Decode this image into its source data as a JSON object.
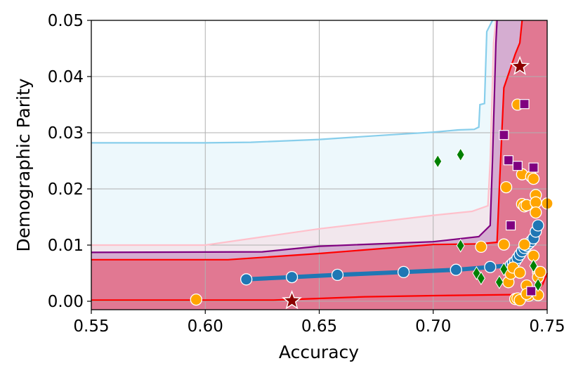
{
  "chart_data": {
    "type": "scatter",
    "xlabel": "Accuracy",
    "ylabel": "Demographic Parity",
    "xlim": [
      0.55,
      0.75
    ],
    "ylim": [
      -0.0015,
      0.05
    ],
    "xticks": [
      "0.55",
      "0.60",
      "0.65",
      "0.70",
      "0.75"
    ],
    "yticks": [
      "0.00",
      "0.01",
      "0.02",
      "0.03",
      "0.04",
      "0.05"
    ],
    "grid": true,
    "colors": {
      "skyblue": "#87ceeb",
      "pink": "#ffc0cb",
      "purple": "#800080",
      "red": "#ff0000",
      "steelblue": "#1f77b4",
      "orange": "#ffa500",
      "green": "#008000",
      "darkred": "#8b0000"
    },
    "regions": [
      {
        "color": "#87ceeb",
        "fill_opacity": 0.15,
        "boundary": [
          [
            0.55,
            0.0282
          ],
          [
            0.6,
            0.0282
          ],
          [
            0.62,
            0.0283
          ],
          [
            0.65,
            0.0288
          ],
          [
            0.68,
            0.0296
          ],
          [
            0.7,
            0.0301
          ],
          [
            0.711,
            0.0305
          ],
          [
            0.718,
            0.0306
          ],
          [
            0.72,
            0.031
          ],
          [
            0.7205,
            0.035
          ],
          [
            0.7225,
            0.0352
          ],
          [
            0.7235,
            0.048
          ],
          [
            0.726,
            0.05
          ]
        ]
      },
      {
        "color": "#ffc0cb",
        "fill_opacity": 0.3,
        "boundary": [
          [
            0.55,
            0.01
          ],
          [
            0.6,
            0.01
          ],
          [
            0.65,
            0.0129
          ],
          [
            0.7,
            0.0153
          ],
          [
            0.717,
            0.016
          ],
          [
            0.724,
            0.017
          ],
          [
            0.725,
            0.025
          ],
          [
            0.7265,
            0.046
          ],
          [
            0.7275,
            0.05
          ]
        ]
      },
      {
        "color": "#800080",
        "fill_opacity": 0.25,
        "boundary": [
          [
            0.55,
            0.0087
          ],
          [
            0.625,
            0.0088
          ],
          [
            0.65,
            0.0098
          ],
          [
            0.7,
            0.0106
          ],
          [
            0.72,
            0.0115
          ],
          [
            0.725,
            0.0135
          ],
          [
            0.726,
            0.025
          ],
          [
            0.7275,
            0.046
          ],
          [
            0.728,
            0.05
          ]
        ]
      },
      {
        "color": "#ff0000",
        "fill_opacity": 0.3,
        "boundary": [
          [
            0.55,
            0.0074
          ],
          [
            0.61,
            0.0074
          ],
          [
            0.65,
            0.0085
          ],
          [
            0.7,
            0.0101
          ],
          [
            0.72,
            0.0102
          ],
          [
            0.728,
            0.0105
          ],
          [
            0.729,
            0.02
          ],
          [
            0.731,
            0.038
          ],
          [
            0.736,
            0.044
          ],
          [
            0.738,
            0.046
          ],
          [
            0.739,
            0.05
          ]
        ]
      }
    ],
    "lower_line": {
      "color": "#ff0000",
      "points": [
        [
          0.55,
          0.0002
        ],
        [
          0.63,
          0.0002
        ],
        [
          0.67,
          0.0008
        ],
        [
          0.7,
          0.001
        ],
        [
          0.74,
          0.0012
        ],
        [
          0.745,
          0.0015
        ],
        [
          0.748,
          0.003
        ],
        [
          0.75,
          0.005
        ]
      ]
    },
    "series": [
      {
        "marker": "circle",
        "color": "#1f77b4",
        "line": true,
        "points": [
          [
            0.618,
            0.0039
          ],
          [
            0.638,
            0.0043
          ],
          [
            0.658,
            0.0047
          ],
          [
            0.687,
            0.0052
          ],
          [
            0.71,
            0.0056
          ],
          [
            0.725,
            0.0061
          ],
          [
            0.734,
            0.0064
          ],
          [
            0.735,
            0.0068
          ],
          [
            0.736,
            0.0071
          ],
          [
            0.737,
            0.0077
          ],
          [
            0.738,
            0.0083
          ],
          [
            0.739,
            0.0089
          ],
          [
            0.74,
            0.0095
          ],
          [
            0.741,
            0.0099
          ],
          [
            0.742,
            0.0103
          ],
          [
            0.743,
            0.0107
          ],
          [
            0.744,
            0.0112
          ],
          [
            0.745,
            0.0124
          ],
          [
            0.746,
            0.0135
          ]
        ]
      },
      {
        "marker": "circle",
        "color": "#ffa500",
        "points": [
          [
            0.596,
            0.0003
          ],
          [
            0.721,
            0.0097
          ],
          [
            0.731,
            0.0101
          ],
          [
            0.732,
            0.0203
          ],
          [
            0.733,
            0.0034
          ],
          [
            0.734,
            0.0049
          ],
          [
            0.735,
            0.006
          ],
          [
            0.736,
            0.0004
          ],
          [
            0.737,
            0.035
          ],
          [
            0.737,
            0.0005
          ],
          [
            0.738,
            0.0051
          ],
          [
            0.739,
            0.0226
          ],
          [
            0.739,
            0.0173
          ],
          [
            0.74,
            0.0169
          ],
          [
            0.741,
            0.0171
          ],
          [
            0.74,
            0.0101
          ],
          [
            0.741,
            0.0028
          ],
          [
            0.742,
            0.001
          ],
          [
            0.743,
            0.0222
          ],
          [
            0.744,
            0.0218
          ],
          [
            0.744,
            0.0081
          ],
          [
            0.745,
            0.0189
          ],
          [
            0.745,
            0.0176
          ],
          [
            0.745,
            0.0158
          ],
          [
            0.746,
            0.0011
          ],
          [
            0.746,
            0.0052
          ],
          [
            0.746,
            0.0043
          ],
          [
            0.747,
            0.0052
          ],
          [
            0.75,
            0.0174
          ],
          [
            0.738,
            0.0002
          ],
          [
            0.741,
            0.0013
          ]
        ]
      },
      {
        "marker": "square",
        "color": "#800080",
        "points": [
          [
            0.731,
            0.0296
          ],
          [
            0.733,
            0.0251
          ],
          [
            0.734,
            0.0135
          ],
          [
            0.737,
            0.0241
          ],
          [
            0.74,
            0.0351
          ],
          [
            0.744,
            0.0238
          ],
          [
            0.743,
            0.0018
          ]
        ]
      },
      {
        "marker": "diamond",
        "color": "#008000",
        "points": [
          [
            0.702,
            0.0249
          ],
          [
            0.712,
            0.0261
          ],
          [
            0.712,
            0.0099
          ],
          [
            0.719,
            0.005
          ],
          [
            0.721,
            0.0041
          ],
          [
            0.729,
            0.0034
          ],
          [
            0.731,
            0.0057
          ],
          [
            0.744,
            0.0063
          ],
          [
            0.746,
            0.0029
          ]
        ]
      },
      {
        "marker": "star",
        "color": "#8b0000",
        "points": [
          [
            0.738,
            0.0418
          ],
          [
            0.638,
            0.0001
          ]
        ]
      }
    ]
  }
}
